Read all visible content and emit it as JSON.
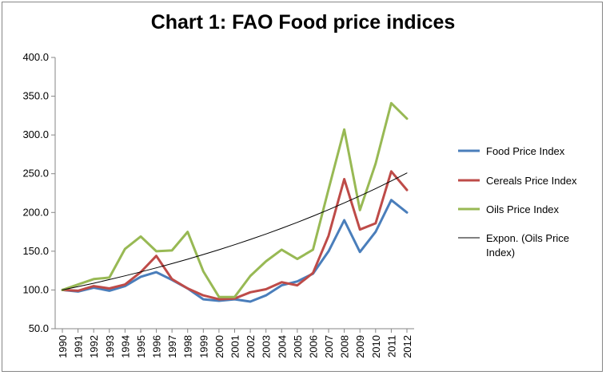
{
  "chart_data": {
    "type": "line",
    "title": "Chart 1: FAO Food price indices",
    "x": [
      "1990",
      "1991",
      "1992",
      "1993",
      "1994",
      "1995",
      "1996",
      "1997",
      "1998",
      "1999",
      "2000",
      "2001",
      "2002",
      "2003",
      "2004",
      "2005",
      "2006",
      "2007",
      "2008",
      "2009",
      "2010",
      "2011",
      "2012"
    ],
    "ylim": [
      50,
      400
    ],
    "yticks": [
      "50.0",
      "100.0",
      "150.0",
      "200.0",
      "250.0",
      "300.0",
      "350.0",
      "400.0"
    ],
    "grid": false,
    "legend_position": "right",
    "series": [
      {
        "name": "Food Price Index",
        "color": "#4a7ebb",
        "values": [
          100,
          98,
          103,
          99,
          105,
          117,
          123,
          113,
          102,
          88,
          86,
          88,
          85,
          93,
          106,
          111,
          121,
          150,
          190,
          149,
          175,
          216,
          200
        ]
      },
      {
        "name": "Cereals Price Index",
        "color": "#be4b48",
        "values": [
          100,
          99,
          105,
          102,
          107,
          123,
          144,
          114,
          102,
          93,
          88,
          89,
          97,
          101,
          110,
          106,
          122,
          170,
          243,
          178,
          186,
          253,
          229
        ]
      },
      {
        "name": "Oils Price Index",
        "color": "#98b954",
        "values": [
          100,
          107,
          114,
          116,
          153,
          169,
          150,
          151,
          175,
          124,
          91,
          91,
          118,
          137,
          152,
          140,
          152,
          230,
          307,
          203,
          263,
          341,
          321
        ]
      },
      {
        "name": "Expon. (Oils Price Index)",
        "color": "#000000",
        "trend": true,
        "values": [
          100,
          104.3,
          108.7,
          113.4,
          118.2,
          123.3,
          128.5,
          134.0,
          139.7,
          145.7,
          151.9,
          158.4,
          165.2,
          172.2,
          179.6,
          187.2,
          195.2,
          203.6,
          212.3,
          221.3,
          230.8,
          240.6,
          250.9
        ]
      }
    ]
  }
}
